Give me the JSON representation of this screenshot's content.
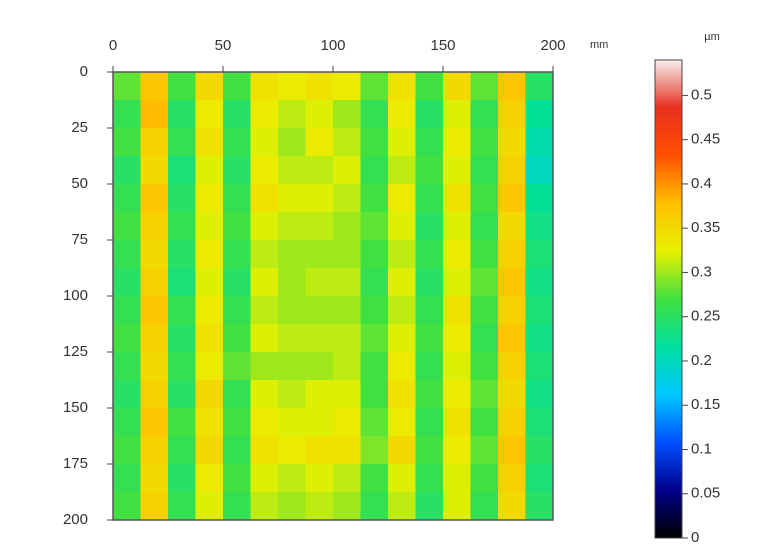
{
  "chart_data": {
    "type": "heatmap",
    "x_unit": "mm",
    "xlim": [
      0,
      200
    ],
    "xticks": [
      0,
      50,
      100,
      150,
      200
    ],
    "ylim": [
      0,
      200
    ],
    "yticks": [
      0,
      25,
      50,
      75,
      100,
      125,
      150,
      175,
      200
    ],
    "colormap": [
      "#000000",
      "#00008b",
      "#0050ff",
      "#00c8ff",
      "#00e0a0",
      "#40e040",
      "#e8f000",
      "#ffc000",
      "#ff5000",
      "#e83020",
      "#f8f0f0"
    ],
    "colorbar": {
      "label": "µm",
      "lim": [
        0,
        0.54
      ],
      "ticks": [
        0,
        0.05,
        0.1,
        0.15,
        0.2,
        0.25,
        0.3,
        0.35,
        0.4,
        0.45,
        0.5
      ]
    },
    "values": [
      [
        0.28,
        0.37,
        0.27,
        0.35,
        0.27,
        0.34,
        0.33,
        0.34,
        0.33,
        0.28,
        0.34,
        0.27,
        0.35,
        0.28,
        0.37,
        0.25
      ],
      [
        0.26,
        0.38,
        0.25,
        0.33,
        0.25,
        0.33,
        0.31,
        0.32,
        0.3,
        0.26,
        0.33,
        0.25,
        0.32,
        0.26,
        0.36,
        0.22
      ],
      [
        0.27,
        0.36,
        0.26,
        0.34,
        0.26,
        0.32,
        0.3,
        0.33,
        0.31,
        0.27,
        0.32,
        0.26,
        0.33,
        0.27,
        0.35,
        0.21
      ],
      [
        0.25,
        0.35,
        0.24,
        0.32,
        0.25,
        0.33,
        0.31,
        0.31,
        0.32,
        0.26,
        0.31,
        0.27,
        0.32,
        0.26,
        0.36,
        0.2
      ],
      [
        0.26,
        0.37,
        0.25,
        0.33,
        0.26,
        0.34,
        0.32,
        0.32,
        0.31,
        0.27,
        0.33,
        0.26,
        0.34,
        0.27,
        0.37,
        0.22
      ],
      [
        0.27,
        0.36,
        0.26,
        0.32,
        0.27,
        0.32,
        0.31,
        0.31,
        0.3,
        0.28,
        0.32,
        0.25,
        0.32,
        0.26,
        0.35,
        0.23
      ],
      [
        0.26,
        0.35,
        0.25,
        0.33,
        0.26,
        0.31,
        0.3,
        0.3,
        0.3,
        0.27,
        0.31,
        0.26,
        0.33,
        0.27,
        0.36,
        0.24
      ],
      [
        0.25,
        0.36,
        0.24,
        0.32,
        0.25,
        0.32,
        0.3,
        0.31,
        0.31,
        0.26,
        0.32,
        0.25,
        0.32,
        0.28,
        0.37,
        0.23
      ],
      [
        0.26,
        0.37,
        0.26,
        0.33,
        0.26,
        0.31,
        0.3,
        0.3,
        0.3,
        0.27,
        0.31,
        0.26,
        0.34,
        0.27,
        0.36,
        0.24
      ],
      [
        0.27,
        0.36,
        0.25,
        0.34,
        0.27,
        0.32,
        0.31,
        0.31,
        0.31,
        0.28,
        0.32,
        0.27,
        0.33,
        0.26,
        0.37,
        0.23
      ],
      [
        0.26,
        0.35,
        0.26,
        0.33,
        0.28,
        0.3,
        0.3,
        0.3,
        0.31,
        0.27,
        0.33,
        0.26,
        0.32,
        0.27,
        0.36,
        0.24
      ],
      [
        0.25,
        0.36,
        0.25,
        0.35,
        0.26,
        0.32,
        0.31,
        0.32,
        0.32,
        0.27,
        0.34,
        0.27,
        0.33,
        0.28,
        0.35,
        0.23
      ],
      [
        0.26,
        0.37,
        0.27,
        0.34,
        0.27,
        0.33,
        0.32,
        0.32,
        0.33,
        0.28,
        0.33,
        0.26,
        0.34,
        0.27,
        0.36,
        0.24
      ],
      [
        0.27,
        0.36,
        0.26,
        0.35,
        0.26,
        0.34,
        0.33,
        0.34,
        0.34,
        0.29,
        0.35,
        0.27,
        0.33,
        0.28,
        0.37,
        0.25
      ],
      [
        0.26,
        0.35,
        0.25,
        0.33,
        0.27,
        0.32,
        0.31,
        0.32,
        0.31,
        0.27,
        0.32,
        0.26,
        0.32,
        0.27,
        0.36,
        0.24
      ],
      [
        0.27,
        0.36,
        0.26,
        0.32,
        0.26,
        0.31,
        0.3,
        0.31,
        0.3,
        0.26,
        0.31,
        0.25,
        0.32,
        0.26,
        0.35,
        0.25
      ]
    ]
  }
}
